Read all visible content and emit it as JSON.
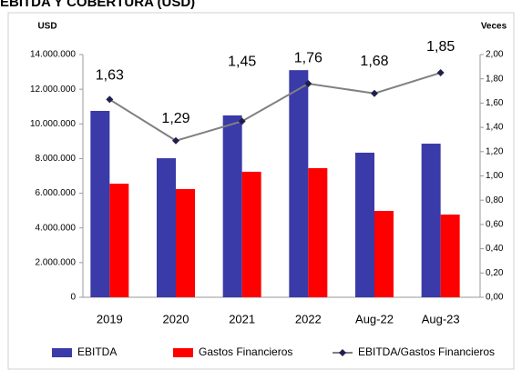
{
  "chart_data": {
    "type": "bar_line",
    "title": "EBITDA Y COBERTURA (USD)",
    "y_label": "USD",
    "y2_label": "Veces",
    "categories": [
      "2019",
      "2020",
      "2021",
      "2022",
      "Aug-22",
      "Aug-23"
    ],
    "series": [
      {
        "name": "EBITDA",
        "color": "#3a3aa8",
        "values": [
          10750000,
          8020000,
          10490000,
          13100000,
          8340000,
          8860000
        ]
      },
      {
        "name": "Gastos Financieros",
        "color": "#ff0000",
        "values": [
          6550000,
          6240000,
          7240000,
          7450000,
          4980000,
          4770000
        ]
      },
      {
        "name": "EBITDA/Gastos Financieros",
        "color": "#808080",
        "marker_color": "#1f1f4f",
        "axis": "y2",
        "values": [
          1.63,
          1.29,
          1.45,
          1.76,
          1.68,
          1.85
        ],
        "value_labels": [
          "1,63",
          "1,29",
          "1,45",
          "1,76",
          "1,68",
          "1,85"
        ]
      }
    ],
    "ylim": [
      0,
      14000000
    ],
    "yticks": [
      0,
      {
        "value": 2000000,
        "label": "2.000.000"
      },
      {
        "value": 4000000,
        "label": "4.000.000"
      },
      {
        "value": 6000000,
        "label": "6.000.000"
      },
      {
        "value": 8000000,
        "label": "8.000.000"
      },
      {
        "value": 10000000,
        "label": "10.000.000"
      },
      {
        "value": 12000000,
        "label": "12.000.000"
      },
      {
        "value": 14000000,
        "label": "14.000.000"
      }
    ],
    "y2lim": [
      0,
      2
    ],
    "y2ticks": [
      {
        "value": 0,
        "label": "0,00"
      },
      {
        "value": 0.2,
        "label": "0,20"
      },
      {
        "value": 0.4,
        "label": "0,40"
      },
      {
        "value": 0.6,
        "label": "0,60"
      },
      {
        "value": 0.8,
        "label": "0,80"
      },
      {
        "value": 1,
        "label": "1,00"
      },
      {
        "value": 1.2,
        "label": "1,20"
      },
      {
        "value": 1.4,
        "label": "1,40"
      },
      {
        "value": 1.6,
        "label": "1,60"
      },
      {
        "value": 1.8,
        "label": "1,80"
      },
      {
        "value": 2,
        "label": "2,00"
      }
    ],
    "legend": "bottom"
  }
}
